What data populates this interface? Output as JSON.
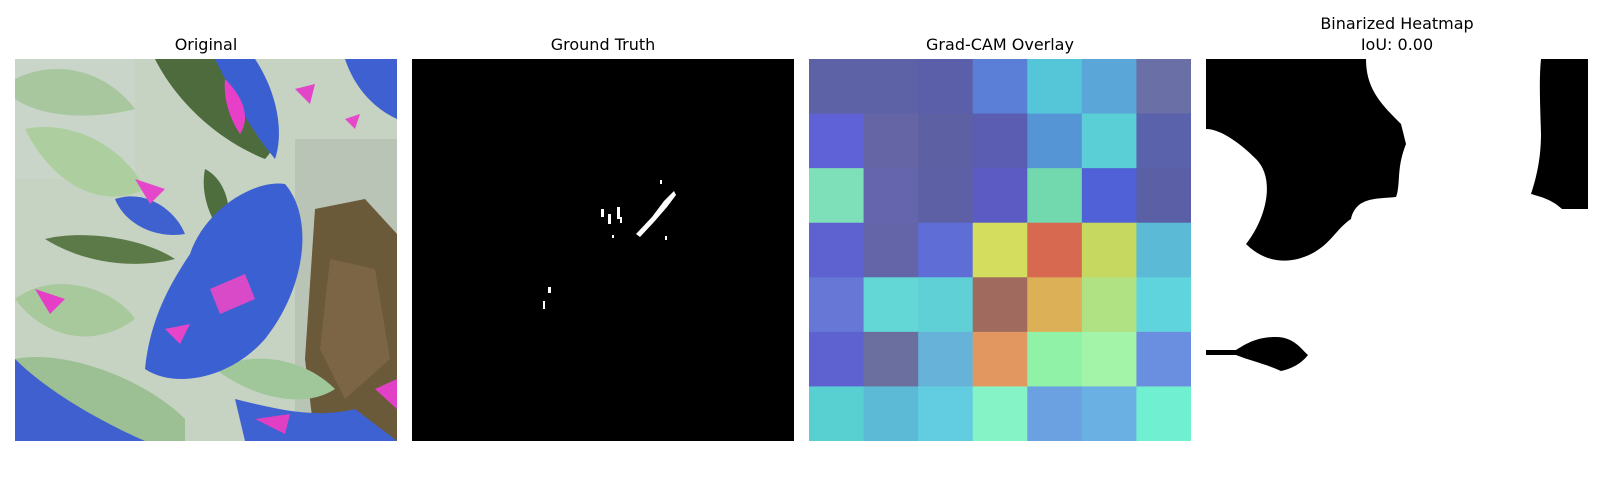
{
  "panels": [
    {
      "title": "Original"
    },
    {
      "title": "Ground Truth"
    },
    {
      "title": "Grad-CAM Overlay"
    },
    {
      "title": "Binarized Heatmap",
      "subtitle": "IoU: 0.00"
    }
  ],
  "gradcam": {
    "grid_size": 7,
    "cells": [
      [
        "#5d62a6",
        "#5d62a6",
        "#5b5fa9",
        "#5b7fd6",
        "#55c6d8",
        "#5aa6d8",
        "#6a6fa6"
      ],
      [
        "#5e62d6",
        "#6565a6",
        "#5e60a4",
        "#5a5db1",
        "#5595d6",
        "#5acfd6",
        "#5b62ac"
      ],
      [
        "#7ee0b8",
        "#6565ad",
        "#5e60a6",
        "#5b5bc3",
        "#72d8ae",
        "#5060d6",
        "#5a5fa6"
      ],
      [
        "#5d62d0",
        "#6464a8",
        "#5e6ed6",
        "#d4dd5e",
        "#d6694f",
        "#c6d860",
        "#5bbad6"
      ],
      [
        "#6677d6",
        "#63d6d6",
        "#5fd0d6",
        "#a06b5e",
        "#dcb057",
        "#b0e283",
        "#60d4dc"
      ],
      [
        "#5e62d0",
        "#6a6fa0",
        "#66b2d8",
        "#e29761",
        "#8ff2a6",
        "#a3f3a8",
        "#6b8fe0"
      ],
      [
        "#58cfd1",
        "#5dbad6",
        "#62cce0",
        "#86f3c6",
        "#6ba1e0",
        "#6bb0e2",
        "#70f0d0"
      ]
    ]
  }
}
